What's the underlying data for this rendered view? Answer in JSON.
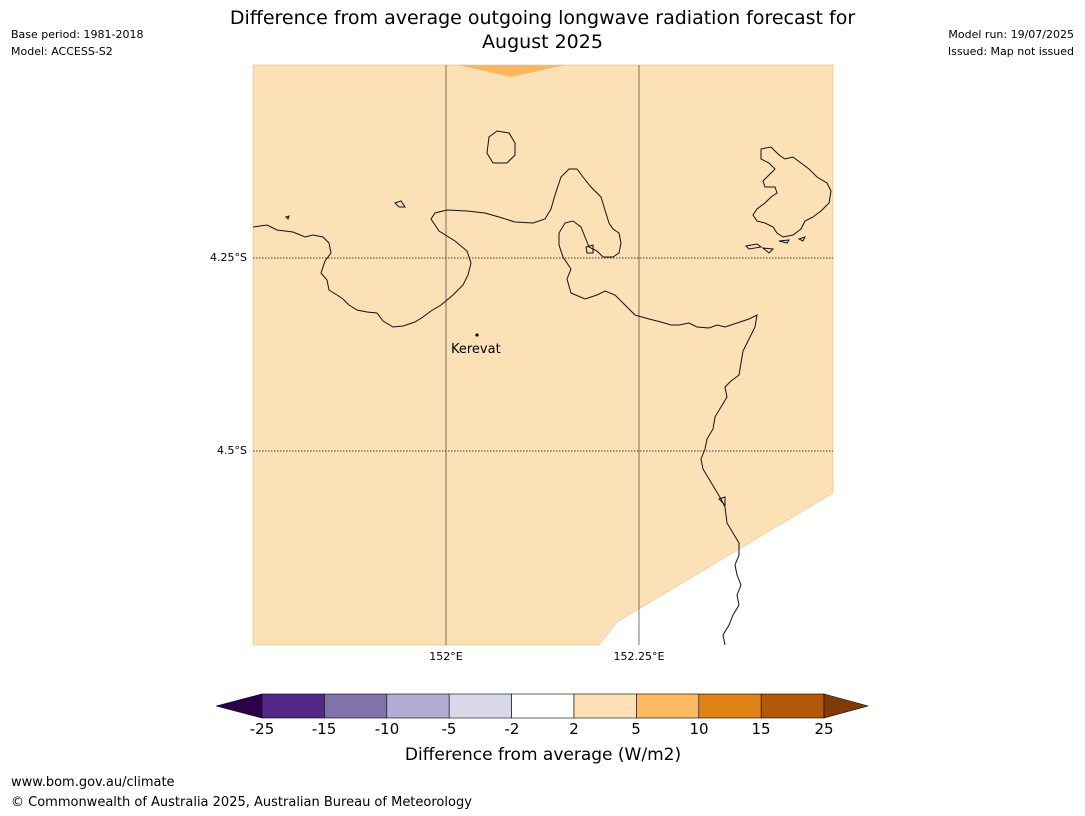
{
  "header": {
    "title_line1": "Difference from average outgoing longwave radiation forecast for",
    "title_line2": "August 2025",
    "base_period": "Base period: 1981-2018",
    "model": "Model: ACCESS-S2",
    "model_run": "Model run: 19/07/2025",
    "issued": "Issued: Map not issued"
  },
  "map": {
    "lat_labels": [
      "4.25°S",
      "4.5°S"
    ],
    "lon_labels": [
      "152°E",
      "152.25°E"
    ],
    "place": {
      "name": "Kerevat"
    },
    "colors": {
      "anomaly_2_5": "#fce0b6",
      "anomaly_5_10": "#fbb660",
      "coastline": "#000000"
    }
  },
  "legend": {
    "title": "Difference from average (W/m2)",
    "ticks": [
      "-25",
      "-15",
      "-10",
      "-5",
      "-2",
      "2",
      "5",
      "10",
      "15",
      "25"
    ],
    "bins": [
      {
        "range": "< -25",
        "color": "#2d004b"
      },
      {
        "range": "-25 to -15",
        "color": "#542788"
      },
      {
        "range": "-15 to -10",
        "color": "#8073ac"
      },
      {
        "range": "-10 to -5",
        "color": "#b2abd2"
      },
      {
        "range": "-5 to -2",
        "color": "#d8daeb"
      },
      {
        "range": "-2 to 2",
        "color": "#ffffff"
      },
      {
        "range": "2 to 5",
        "color": "#fee0b6"
      },
      {
        "range": "5 to 10",
        "color": "#fdb863"
      },
      {
        "range": "10 to 15",
        "color": "#e08214"
      },
      {
        "range": "15 to 25",
        "color": "#b35806"
      },
      {
        "range": "> 25",
        "color": "#7f3b08"
      }
    ]
  },
  "footer": {
    "url": "www.bom.gov.au/climate",
    "copyright": "© Commonwealth of Australia 2025, Australian Bureau of Meteorology"
  }
}
